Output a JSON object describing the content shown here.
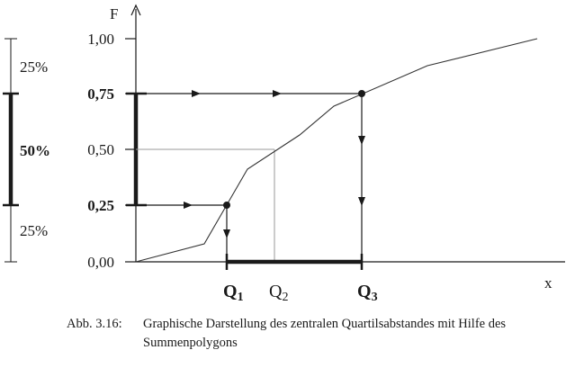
{
  "chart_data": {
    "type": "line",
    "x_axis_label": "x",
    "y_axis_label": "F",
    "y_ticks": [
      {
        "label": "1,00",
        "value": 1.0,
        "bold": false
      },
      {
        "label": "0,75",
        "value": 0.75,
        "bold": true
      },
      {
        "label": "0,50",
        "value": 0.5,
        "bold": false
      },
      {
        "label": "0,25",
        "value": 0.25,
        "bold": true
      },
      {
        "label": "0,00",
        "value": 0.0,
        "bold": false
      }
    ],
    "ylim": [
      0,
      1
    ],
    "series": [
      {
        "points": [
          [
            0,
            0.0
          ],
          [
            30,
            0.08
          ],
          [
            38,
            0.39
          ],
          [
            60,
            0.55
          ],
          [
            87,
            0.7
          ],
          [
            125,
            0.88
          ],
          [
            175,
            1.0
          ]
        ]
      }
    ],
    "quartiles": [
      {
        "name": "Q",
        "sub": "1",
        "F": 0.25,
        "x": 40,
        "bold": true
      },
      {
        "name": "Q",
        "sub": "2",
        "F": 0.5,
        "x": 62,
        "bold": false
      },
      {
        "name": "Q",
        "sub": "3",
        "F": 0.75,
        "x": 100,
        "bold": true
      }
    ],
    "left_brackets": [
      {
        "label": "25%",
        "from": 0.75,
        "to": 1.0,
        "bold": false
      },
      {
        "label": "50%",
        "from": 0.25,
        "to": 0.75,
        "bold": true
      },
      {
        "label": "25%",
        "from": 0.0,
        "to": 0.25,
        "bold": false
      }
    ]
  },
  "caption": {
    "number": "Abb. 3.16:",
    "text": "Graphische Darstellung des zentralen Quartilsabstandes mit Hilfe des Summenpolygons"
  }
}
